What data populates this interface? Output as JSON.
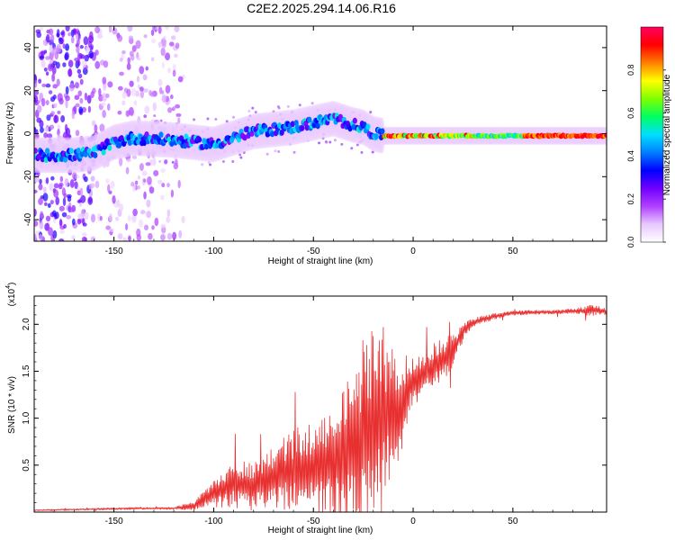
{
  "figure_title": "C2E2.2025.294.14.06.R16",
  "colorbar": {
    "label": "Normalized spectral amplitude",
    "ticks": [
      "0.0",
      "0.2",
      "0.4",
      "0.6",
      "0.8"
    ],
    "colors": [
      "#ffffff",
      "#e8c8ff",
      "#b040ff",
      "#7000ff",
      "#0000ff",
      "#0080ff",
      "#00e0ff",
      "#00ff60",
      "#80ff00",
      "#ffff00",
      "#ff8000",
      "#ff0000",
      "#ff0060"
    ]
  },
  "chart_data": [
    {
      "type": "heatmap",
      "title": "C2E2.2025.294.14.06.R16",
      "xlabel": "Height of straight line (km)",
      "ylabel": "Frequency (Hz)",
      "xlim": [
        -190,
        97
      ],
      "ylim": [
        -50,
        50
      ],
      "x_ticks": [
        "-150",
        "-100",
        "-50",
        "0",
        "50"
      ],
      "y_ticks": [
        "40",
        "20",
        "0",
        "-20",
        "-40"
      ],
      "ridge": {
        "x": [
          -190,
          -170,
          -160,
          -150,
          -140,
          -120,
          -100,
          -80,
          -60,
          -50,
          -40,
          -30,
          -25,
          -20,
          -15,
          -10,
          0,
          20,
          50,
          80,
          95
        ],
        "freq": [
          -10,
          -10,
          -9,
          -4,
          -2,
          -3,
          -5,
          1,
          3,
          5,
          7,
          4,
          3,
          0,
          -1,
          -1,
          -1,
          -1,
          -1,
          -1,
          -1
        ]
      }
    },
    {
      "type": "line",
      "xlabel": "Height of straight line (km)",
      "ylabel": "SNR (10 * v/v)",
      "y_scale_label": "(x10",
      "y_scale_exponent": "4",
      "xlim": [
        -190,
        97
      ],
      "ylim": [
        0,
        2.3
      ],
      "x_ticks": [
        "-150",
        "-100",
        "-50",
        "0",
        "50"
      ],
      "y_ticks": [
        "0.5",
        "1.0",
        "1.5",
        "2.0"
      ],
      "series": [
        {
          "name": "SNR",
          "color": "#e83030",
          "x": [
            -190,
            -140,
            -120,
            -110,
            -100,
            -90,
            -80,
            -70,
            -60,
            -50,
            -40,
            -35,
            -30,
            -25,
            -20,
            -15,
            -10,
            -5,
            0,
            5,
            10,
            15,
            20,
            25,
            30,
            40,
            50,
            60,
            70,
            80,
            90,
            97
          ],
          "y": [
            0.02,
            0.04,
            0.04,
            0.07,
            0.2,
            0.3,
            0.28,
            0.38,
            0.45,
            0.48,
            0.52,
            0.6,
            0.7,
            0.78,
            0.9,
            1.02,
            1.08,
            1.2,
            1.4,
            1.45,
            1.55,
            1.62,
            1.72,
            1.92,
            2.02,
            2.08,
            2.12,
            2.13,
            2.13,
            2.14,
            2.15,
            2.14
          ],
          "noise": [
            0.005,
            0.01,
            0.01,
            0.04,
            0.12,
            0.22,
            0.22,
            0.3,
            0.36,
            0.42,
            0.52,
            0.7,
            0.8,
            0.9,
            0.9,
            0.8,
            0.6,
            0.4,
            0.22,
            0.2,
            0.2,
            0.2,
            0.15,
            0.08,
            0.04,
            0.03,
            0.02,
            0.02,
            0.02,
            0.02,
            0.05,
            0.03
          ]
        }
      ]
    }
  ]
}
